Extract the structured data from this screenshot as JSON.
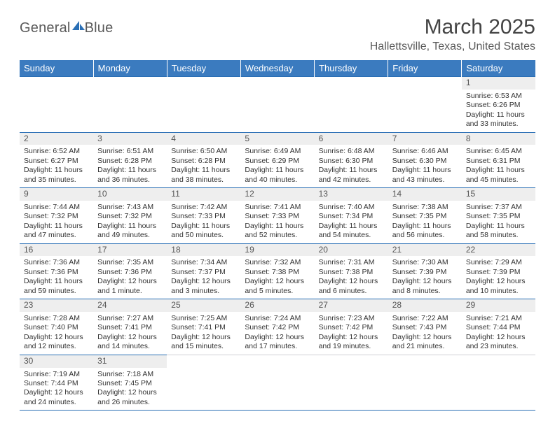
{
  "brand": {
    "word1": "General",
    "word2": "Blue",
    "sail_color": "#2a6fb5"
  },
  "title": "March 2025",
  "location": "Hallettsville, Texas, United States",
  "header_bg": "#3b7bbf",
  "header_text": "#ffffff",
  "line_color": "#2a6fb5",
  "daynum_bg": "#eeeeee",
  "body_text": "#333333",
  "weekdays": [
    "Sunday",
    "Monday",
    "Tuesday",
    "Wednesday",
    "Thursday",
    "Friday",
    "Saturday"
  ],
  "weeks": [
    [
      null,
      null,
      null,
      null,
      null,
      null,
      {
        "n": "1",
        "sr": "Sunrise: 6:53 AM",
        "ss": "Sunset: 6:26 PM",
        "dl": "Daylight: 11 hours and 33 minutes."
      }
    ],
    [
      {
        "n": "2",
        "sr": "Sunrise: 6:52 AM",
        "ss": "Sunset: 6:27 PM",
        "dl": "Daylight: 11 hours and 35 minutes."
      },
      {
        "n": "3",
        "sr": "Sunrise: 6:51 AM",
        "ss": "Sunset: 6:28 PM",
        "dl": "Daylight: 11 hours and 36 minutes."
      },
      {
        "n": "4",
        "sr": "Sunrise: 6:50 AM",
        "ss": "Sunset: 6:28 PM",
        "dl": "Daylight: 11 hours and 38 minutes."
      },
      {
        "n": "5",
        "sr": "Sunrise: 6:49 AM",
        "ss": "Sunset: 6:29 PM",
        "dl": "Daylight: 11 hours and 40 minutes."
      },
      {
        "n": "6",
        "sr": "Sunrise: 6:48 AM",
        "ss": "Sunset: 6:30 PM",
        "dl": "Daylight: 11 hours and 42 minutes."
      },
      {
        "n": "7",
        "sr": "Sunrise: 6:46 AM",
        "ss": "Sunset: 6:30 PM",
        "dl": "Daylight: 11 hours and 43 minutes."
      },
      {
        "n": "8",
        "sr": "Sunrise: 6:45 AM",
        "ss": "Sunset: 6:31 PM",
        "dl": "Daylight: 11 hours and 45 minutes."
      }
    ],
    [
      {
        "n": "9",
        "sr": "Sunrise: 7:44 AM",
        "ss": "Sunset: 7:32 PM",
        "dl": "Daylight: 11 hours and 47 minutes."
      },
      {
        "n": "10",
        "sr": "Sunrise: 7:43 AM",
        "ss": "Sunset: 7:32 PM",
        "dl": "Daylight: 11 hours and 49 minutes."
      },
      {
        "n": "11",
        "sr": "Sunrise: 7:42 AM",
        "ss": "Sunset: 7:33 PM",
        "dl": "Daylight: 11 hours and 50 minutes."
      },
      {
        "n": "12",
        "sr": "Sunrise: 7:41 AM",
        "ss": "Sunset: 7:33 PM",
        "dl": "Daylight: 11 hours and 52 minutes."
      },
      {
        "n": "13",
        "sr": "Sunrise: 7:40 AM",
        "ss": "Sunset: 7:34 PM",
        "dl": "Daylight: 11 hours and 54 minutes."
      },
      {
        "n": "14",
        "sr": "Sunrise: 7:38 AM",
        "ss": "Sunset: 7:35 PM",
        "dl": "Daylight: 11 hours and 56 minutes."
      },
      {
        "n": "15",
        "sr": "Sunrise: 7:37 AM",
        "ss": "Sunset: 7:35 PM",
        "dl": "Daylight: 11 hours and 58 minutes."
      }
    ],
    [
      {
        "n": "16",
        "sr": "Sunrise: 7:36 AM",
        "ss": "Sunset: 7:36 PM",
        "dl": "Daylight: 11 hours and 59 minutes."
      },
      {
        "n": "17",
        "sr": "Sunrise: 7:35 AM",
        "ss": "Sunset: 7:36 PM",
        "dl": "Daylight: 12 hours and 1 minute."
      },
      {
        "n": "18",
        "sr": "Sunrise: 7:34 AM",
        "ss": "Sunset: 7:37 PM",
        "dl": "Daylight: 12 hours and 3 minutes."
      },
      {
        "n": "19",
        "sr": "Sunrise: 7:32 AM",
        "ss": "Sunset: 7:38 PM",
        "dl": "Daylight: 12 hours and 5 minutes."
      },
      {
        "n": "20",
        "sr": "Sunrise: 7:31 AM",
        "ss": "Sunset: 7:38 PM",
        "dl": "Daylight: 12 hours and 6 minutes."
      },
      {
        "n": "21",
        "sr": "Sunrise: 7:30 AM",
        "ss": "Sunset: 7:39 PM",
        "dl": "Daylight: 12 hours and 8 minutes."
      },
      {
        "n": "22",
        "sr": "Sunrise: 7:29 AM",
        "ss": "Sunset: 7:39 PM",
        "dl": "Daylight: 12 hours and 10 minutes."
      }
    ],
    [
      {
        "n": "23",
        "sr": "Sunrise: 7:28 AM",
        "ss": "Sunset: 7:40 PM",
        "dl": "Daylight: 12 hours and 12 minutes."
      },
      {
        "n": "24",
        "sr": "Sunrise: 7:27 AM",
        "ss": "Sunset: 7:41 PM",
        "dl": "Daylight: 12 hours and 14 minutes."
      },
      {
        "n": "25",
        "sr": "Sunrise: 7:25 AM",
        "ss": "Sunset: 7:41 PM",
        "dl": "Daylight: 12 hours and 15 minutes."
      },
      {
        "n": "26",
        "sr": "Sunrise: 7:24 AM",
        "ss": "Sunset: 7:42 PM",
        "dl": "Daylight: 12 hours and 17 minutes."
      },
      {
        "n": "27",
        "sr": "Sunrise: 7:23 AM",
        "ss": "Sunset: 7:42 PM",
        "dl": "Daylight: 12 hours and 19 minutes."
      },
      {
        "n": "28",
        "sr": "Sunrise: 7:22 AM",
        "ss": "Sunset: 7:43 PM",
        "dl": "Daylight: 12 hours and 21 minutes."
      },
      {
        "n": "29",
        "sr": "Sunrise: 7:21 AM",
        "ss": "Sunset: 7:44 PM",
        "dl": "Daylight: 12 hours and 23 minutes."
      }
    ],
    [
      {
        "n": "30",
        "sr": "Sunrise: 7:19 AM",
        "ss": "Sunset: 7:44 PM",
        "dl": "Daylight: 12 hours and 24 minutes."
      },
      {
        "n": "31",
        "sr": "Sunrise: 7:18 AM",
        "ss": "Sunset: 7:45 PM",
        "dl": "Daylight: 12 hours and 26 minutes."
      },
      null,
      null,
      null,
      null,
      null
    ]
  ]
}
